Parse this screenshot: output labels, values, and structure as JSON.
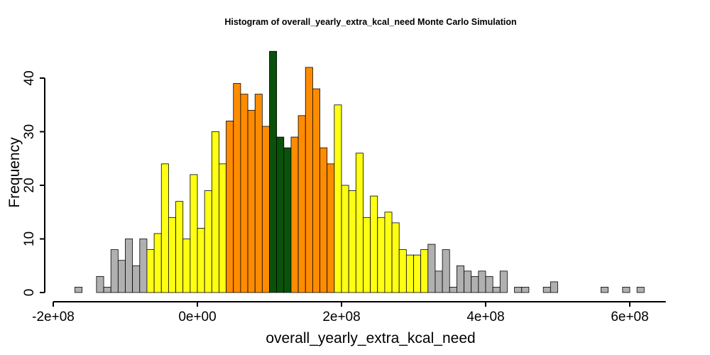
{
  "chart_data": {
    "type": "bar",
    "title": "Histogram of  overall_yearly_extra_kcal_need  Monte Carlo Simulation",
    "xlabel": "overall_yearly_extra_kcal_need",
    "ylabel": "Frequency",
    "xlim": [
      -200000000,
      650000000
    ],
    "ylim": [
      0,
      45
    ],
    "x_ticks": [
      -200000000,
      0,
      200000000,
      400000000,
      600000000
    ],
    "x_tick_labels": [
      "-2e+08",
      "0e+00",
      "2e+08",
      "4e+08",
      "6e+08"
    ],
    "y_ticks": [
      0,
      10,
      20,
      30,
      40
    ],
    "y_tick_labels": [
      "0",
      "10",
      "20",
      "30",
      "40"
    ],
    "grid": false,
    "legend": "none",
    "bin_width": 10000000,
    "bin_start": -170000000,
    "colors": {
      "outer": "#b0b0b0",
      "mid": "#ffff14",
      "inner": "#ff8c00",
      "core": "#0a520a"
    },
    "counts": [
      1,
      0,
      0,
      3,
      1,
      8,
      6,
      10,
      5,
      10,
      8,
      11,
      24,
      14,
      17,
      10,
      22,
      12,
      19,
      30,
      24,
      32,
      39,
      37,
      34,
      37,
      31,
      45,
      29,
      27,
      29,
      33,
      42,
      38,
      27,
      24,
      35,
      20,
      19,
      26,
      14,
      18,
      14,
      15,
      13,
      8,
      7,
      7,
      8,
      9,
      4,
      8,
      1,
      5,
      4,
      3,
      4,
      3,
      1,
      4,
      0,
      1,
      1,
      0,
      0,
      1,
      2,
      0,
      0,
      0,
      0,
      0,
      0,
      1,
      0,
      0,
      1,
      0,
      1
    ],
    "bin_bands": [
      "outer",
      "outer",
      "outer",
      "outer",
      "outer",
      "outer",
      "outer",
      "outer",
      "outer",
      "outer",
      "mid",
      "mid",
      "mid",
      "mid",
      "mid",
      "mid",
      "mid",
      "mid",
      "mid",
      "mid",
      "mid",
      "inner",
      "inner",
      "inner",
      "inner",
      "inner",
      "inner",
      "core",
      "core",
      "core",
      "inner",
      "inner",
      "inner",
      "inner",
      "inner",
      "inner",
      "mid",
      "mid",
      "mid",
      "mid",
      "mid",
      "mid",
      "mid",
      "mid",
      "mid",
      "mid",
      "mid",
      "mid",
      "mid",
      "outer",
      "outer",
      "outer",
      "outer",
      "outer",
      "outer",
      "outer",
      "outer",
      "outer",
      "outer",
      "outer",
      "outer",
      "outer",
      "outer",
      "outer",
      "outer",
      "outer",
      "outer",
      "outer",
      "outer",
      "outer",
      "outer",
      "outer",
      "outer",
      "outer",
      "outer",
      "outer",
      "outer",
      "outer",
      "outer"
    ]
  }
}
